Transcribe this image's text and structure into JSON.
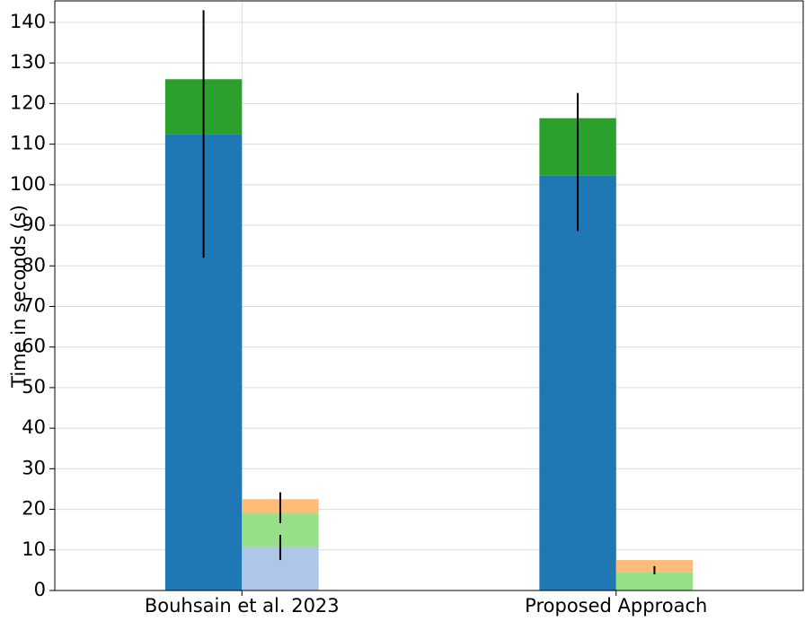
{
  "chart_data": {
    "type": "stacked_bar",
    "y_label": "Time in seconds (s)",
    "categories": [
      "Bouhsain et al. 2023",
      "Proposed Approach"
    ],
    "series": [
      {
        "color": "#1f77b4",
        "stack": 0,
        "values": [
          112.5,
          102.2
        ]
      },
      {
        "color": "#2ca02c",
        "stack": 0,
        "values": [
          13.5,
          14.2
        ]
      },
      {
        "color": "#aec7e8",
        "stack": 1,
        "values": [
          10.6,
          0
        ]
      },
      {
        "color": "#98df8a",
        "stack": 1,
        "values": [
          8.4,
          4.6
        ]
      },
      {
        "color": "#ffbb78",
        "stack": 1,
        "values": [
          3.5,
          2.9
        ]
      }
    ],
    "error_bars": [
      {
        "stack": 0,
        "centers": [
          112.5,
          105.6
        ],
        "errors": [
          30.5,
          17
        ]
      },
      {
        "stack": 1,
        "centers": [
          10.6,
          5.0
        ],
        "errors": [
          3.1,
          1.0
        ]
      },
      {
        "stack": 1,
        "centers": [
          20.4,
          null
        ],
        "errors": [
          3.8,
          null
        ]
      }
    ],
    "ylim": [
      0,
      145.3
    ],
    "yticks": [
      0,
      10,
      20,
      30,
      40,
      50,
      60,
      70,
      80,
      90,
      100,
      110,
      120,
      130,
      140
    ],
    "grid": true
  }
}
